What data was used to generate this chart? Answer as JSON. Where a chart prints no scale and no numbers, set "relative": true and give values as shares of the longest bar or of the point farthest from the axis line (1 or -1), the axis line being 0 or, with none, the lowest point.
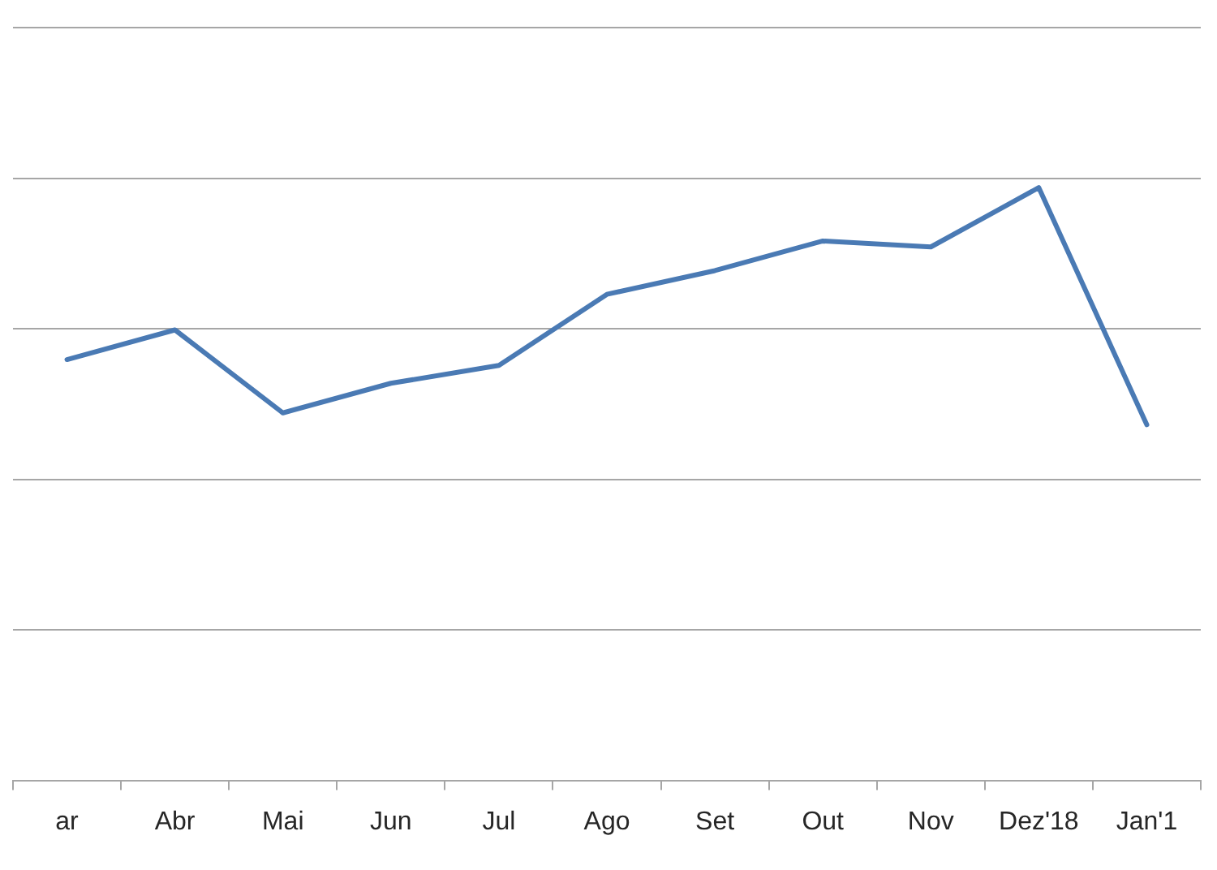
{
  "chart_data": {
    "type": "line",
    "categories": [
      "ar",
      "Abr",
      "Mai",
      "Jun",
      "Jul",
      "Ago",
      "Set",
      "Out",
      "Nov",
      "Dez'18",
      "Jan'1"
    ],
    "values": [
      0.71,
      0.76,
      0.62,
      0.67,
      0.7,
      0.82,
      0.86,
      0.91,
      0.9,
      1,
      0.6
    ],
    "color": "#4a7ab4",
    "relative": true,
    "grid": "y",
    "legend": false,
    "marker": "none",
    "line_style": "solid"
  }
}
